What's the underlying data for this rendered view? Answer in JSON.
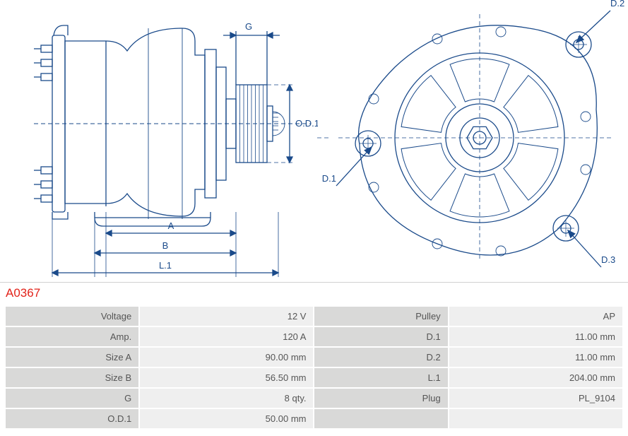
{
  "part_number": "A0367",
  "diagram": {
    "stroke_color": "#1a4a8a",
    "stroke_width": 1.3,
    "dim_font_size": 13,
    "dim_color": "#1a4a8a",
    "left_view": {
      "labels": {
        "A": "A",
        "B": "B",
        "L1": "L.1",
        "G": "G",
        "OD1": "O.D.1"
      }
    },
    "right_view": {
      "labels": {
        "D1": "D.1",
        "D2": "D.2",
        "D3": "D.3"
      }
    },
    "centerline_dash": "6 4"
  },
  "specs": {
    "col1": [
      {
        "label": "Voltage",
        "value": "12 V"
      },
      {
        "label": "Amp.",
        "value": "120 A"
      },
      {
        "label": "Size A",
        "value": "90.00 mm"
      },
      {
        "label": "Size B",
        "value": "56.50 mm"
      },
      {
        "label": "G",
        "value": "8 qty."
      },
      {
        "label": "O.D.1",
        "value": "50.00 mm"
      }
    ],
    "col2": [
      {
        "label": "Pulley",
        "value": "AP"
      },
      {
        "label": "D.1",
        "value": "11.00 mm"
      },
      {
        "label": "D.2",
        "value": "11.00 mm"
      },
      {
        "label": "L.1",
        "value": "204.00 mm"
      },
      {
        "label": "Plug",
        "value": "PL_9104"
      },
      {
        "label": "",
        "value": ""
      }
    ]
  },
  "table_style": {
    "label_bg": "#d9d9d8",
    "value_bg": "#efefef",
    "text_color": "#555555",
    "border_color": "#ffffff",
    "font_size": 13
  }
}
